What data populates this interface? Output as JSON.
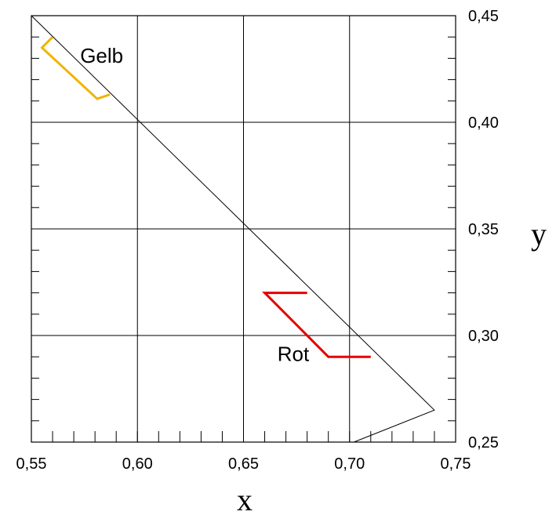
{
  "chart_data": {
    "type": "line",
    "xlabel": "x",
    "ylabel": "y",
    "xlim": [
      0.55,
      0.75
    ],
    "ylim": [
      0.25,
      0.45
    ],
    "x_ticks": [
      {
        "value": 0.55,
        "label": "0,55"
      },
      {
        "value": 0.6,
        "label": "0,60"
      },
      {
        "value": 0.65,
        "label": "0,65"
      },
      {
        "value": 0.7,
        "label": "0,70"
      },
      {
        "value": 0.75,
        "label": "0,75"
      }
    ],
    "y_ticks": [
      {
        "value": 0.25,
        "label": "0,25"
      },
      {
        "value": 0.3,
        "label": "0,30"
      },
      {
        "value": 0.35,
        "label": "0,35"
      },
      {
        "value": 0.4,
        "label": "0,40"
      },
      {
        "value": 0.45,
        "label": "0,45"
      }
    ],
    "x_minor_step": 0.01,
    "y_minor_step": 0.01,
    "grid": true,
    "boundary": {
      "color": "#000000",
      "points": [
        [
          0.55,
          0.45
        ],
        [
          0.74,
          0.265
        ],
        [
          0.702,
          0.25
        ]
      ]
    },
    "series": [
      {
        "name": "Gelb",
        "color": "#f0b400",
        "points": [
          [
            0.56,
            0.44
          ],
          [
            0.555,
            0.435
          ],
          [
            0.581,
            0.411
          ],
          [
            0.587,
            0.413
          ]
        ],
        "label_pos": [
          0.573,
          0.428
        ]
      },
      {
        "name": "Rot",
        "color": "#e60000",
        "points": [
          [
            0.68,
            0.32
          ],
          [
            0.66,
            0.32
          ],
          [
            0.69,
            0.29
          ],
          [
            0.71,
            0.29
          ]
        ],
        "label_pos": [
          0.666,
          0.288
        ]
      }
    ]
  }
}
